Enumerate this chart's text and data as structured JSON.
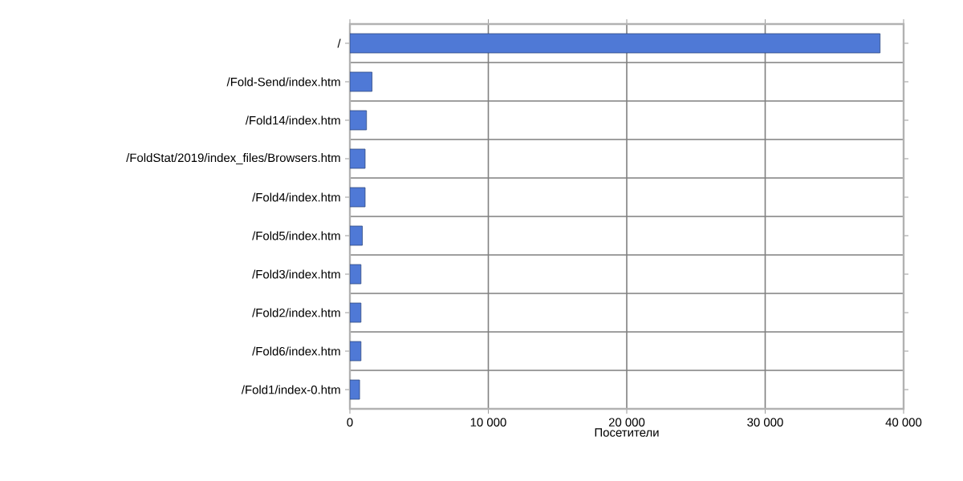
{
  "chart_data": {
    "type": "bar",
    "orientation": "horizontal",
    "xlabel": "Посетители",
    "categories": [
      "/",
      "/Fold-Send/index.htm",
      "/Fold14/index.htm",
      "/FoldStat/2019/index_files/Browsers.htm",
      "/Fold4/index.htm",
      "/Fold5/index.htm",
      "/Fold3/index.htm",
      "/Fold2/index.htm",
      "/Fold6/index.htm",
      "/Fold1/index-0.htm"
    ],
    "values": [
      38300,
      1600,
      1200,
      1100,
      1100,
      900,
      800,
      800,
      800,
      700
    ],
    "color": "#4f79d6",
    "xlim": [
      0,
      40000
    ],
    "xticks": [
      0,
      {
        "value": 10000,
        "label": "10 000"
      },
      {
        "value": 20000,
        "label": "20 000"
      },
      {
        "value": 30000,
        "label": "30 000"
      },
      {
        "value": 40000,
        "label": "40 000"
      }
    ],
    "grid": true
  }
}
